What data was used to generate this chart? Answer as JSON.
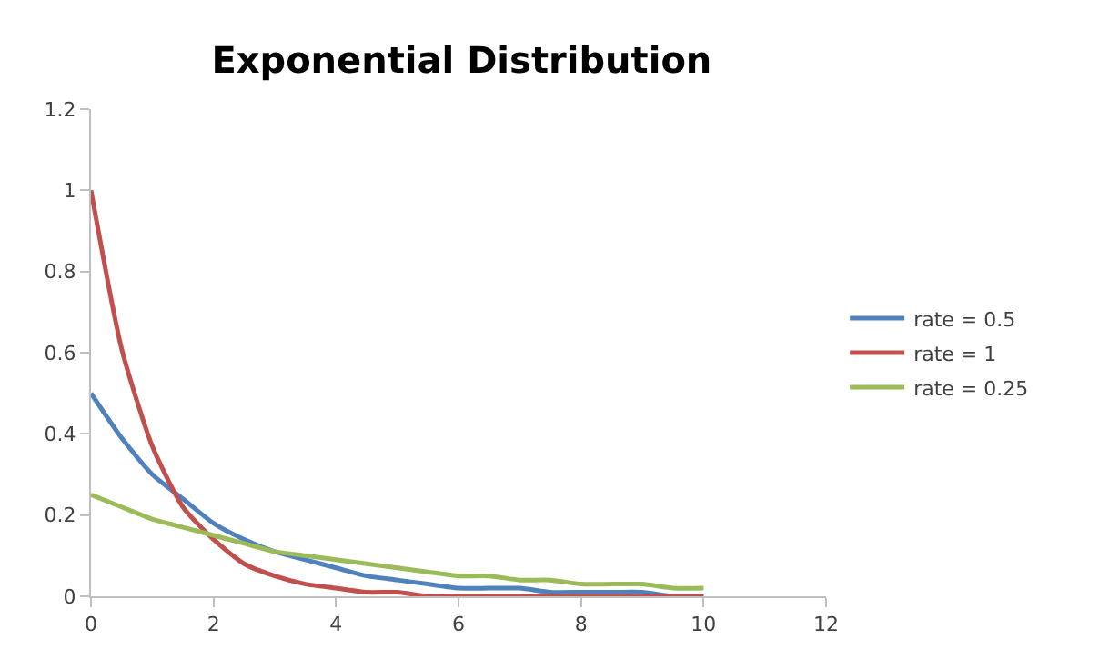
{
  "chart_data": {
    "type": "line",
    "title": "Exponential Distribution",
    "x": [
      0,
      0.5,
      1,
      1.5,
      2,
      2.5,
      3,
      3.5,
      4,
      4.5,
      5,
      5.5,
      6,
      6.5,
      7,
      7.5,
      8,
      8.5,
      9,
      9.5,
      10
    ],
    "series": [
      {
        "name": "rate = 0.5",
        "color": "#4f81bd",
        "values": [
          0.5,
          0.39,
          0.3,
          0.24,
          0.18,
          0.14,
          0.11,
          0.09,
          0.07,
          0.05,
          0.04,
          0.03,
          0.02,
          0.02,
          0.02,
          0.01,
          0.01,
          0.01,
          0.01,
          0.0,
          0.0
        ]
      },
      {
        "name": "rate = 1",
        "color": "#c0504d",
        "values": [
          1,
          0.61,
          0.37,
          0.22,
          0.14,
          0.08,
          0.05,
          0.03,
          0.02,
          0.01,
          0.01,
          0,
          0,
          0,
          0,
          0,
          0,
          0,
          0,
          0,
          0
        ]
      },
      {
        "name": "rate = 0.25",
        "color": "#9bbb59",
        "values": [
          0.25,
          0.22,
          0.19,
          0.17,
          0.15,
          0.13,
          0.11,
          0.1,
          0.09,
          0.08,
          0.07,
          0.06,
          0.05,
          0.05,
          0.04,
          0.04,
          0.03,
          0.03,
          0.03,
          0.02,
          0.02
        ]
      }
    ],
    "xlim": [
      0,
      12
    ],
    "xticks": [
      0,
      2,
      4,
      6,
      8,
      10,
      12
    ],
    "ylim": [
      0,
      1.2
    ],
    "yticks": [
      0,
      0.2,
      0.4,
      0.6,
      0.8,
      1,
      1.2
    ],
    "grid": false,
    "legend": "right",
    "marker": "none",
    "line_style": "solid"
  }
}
